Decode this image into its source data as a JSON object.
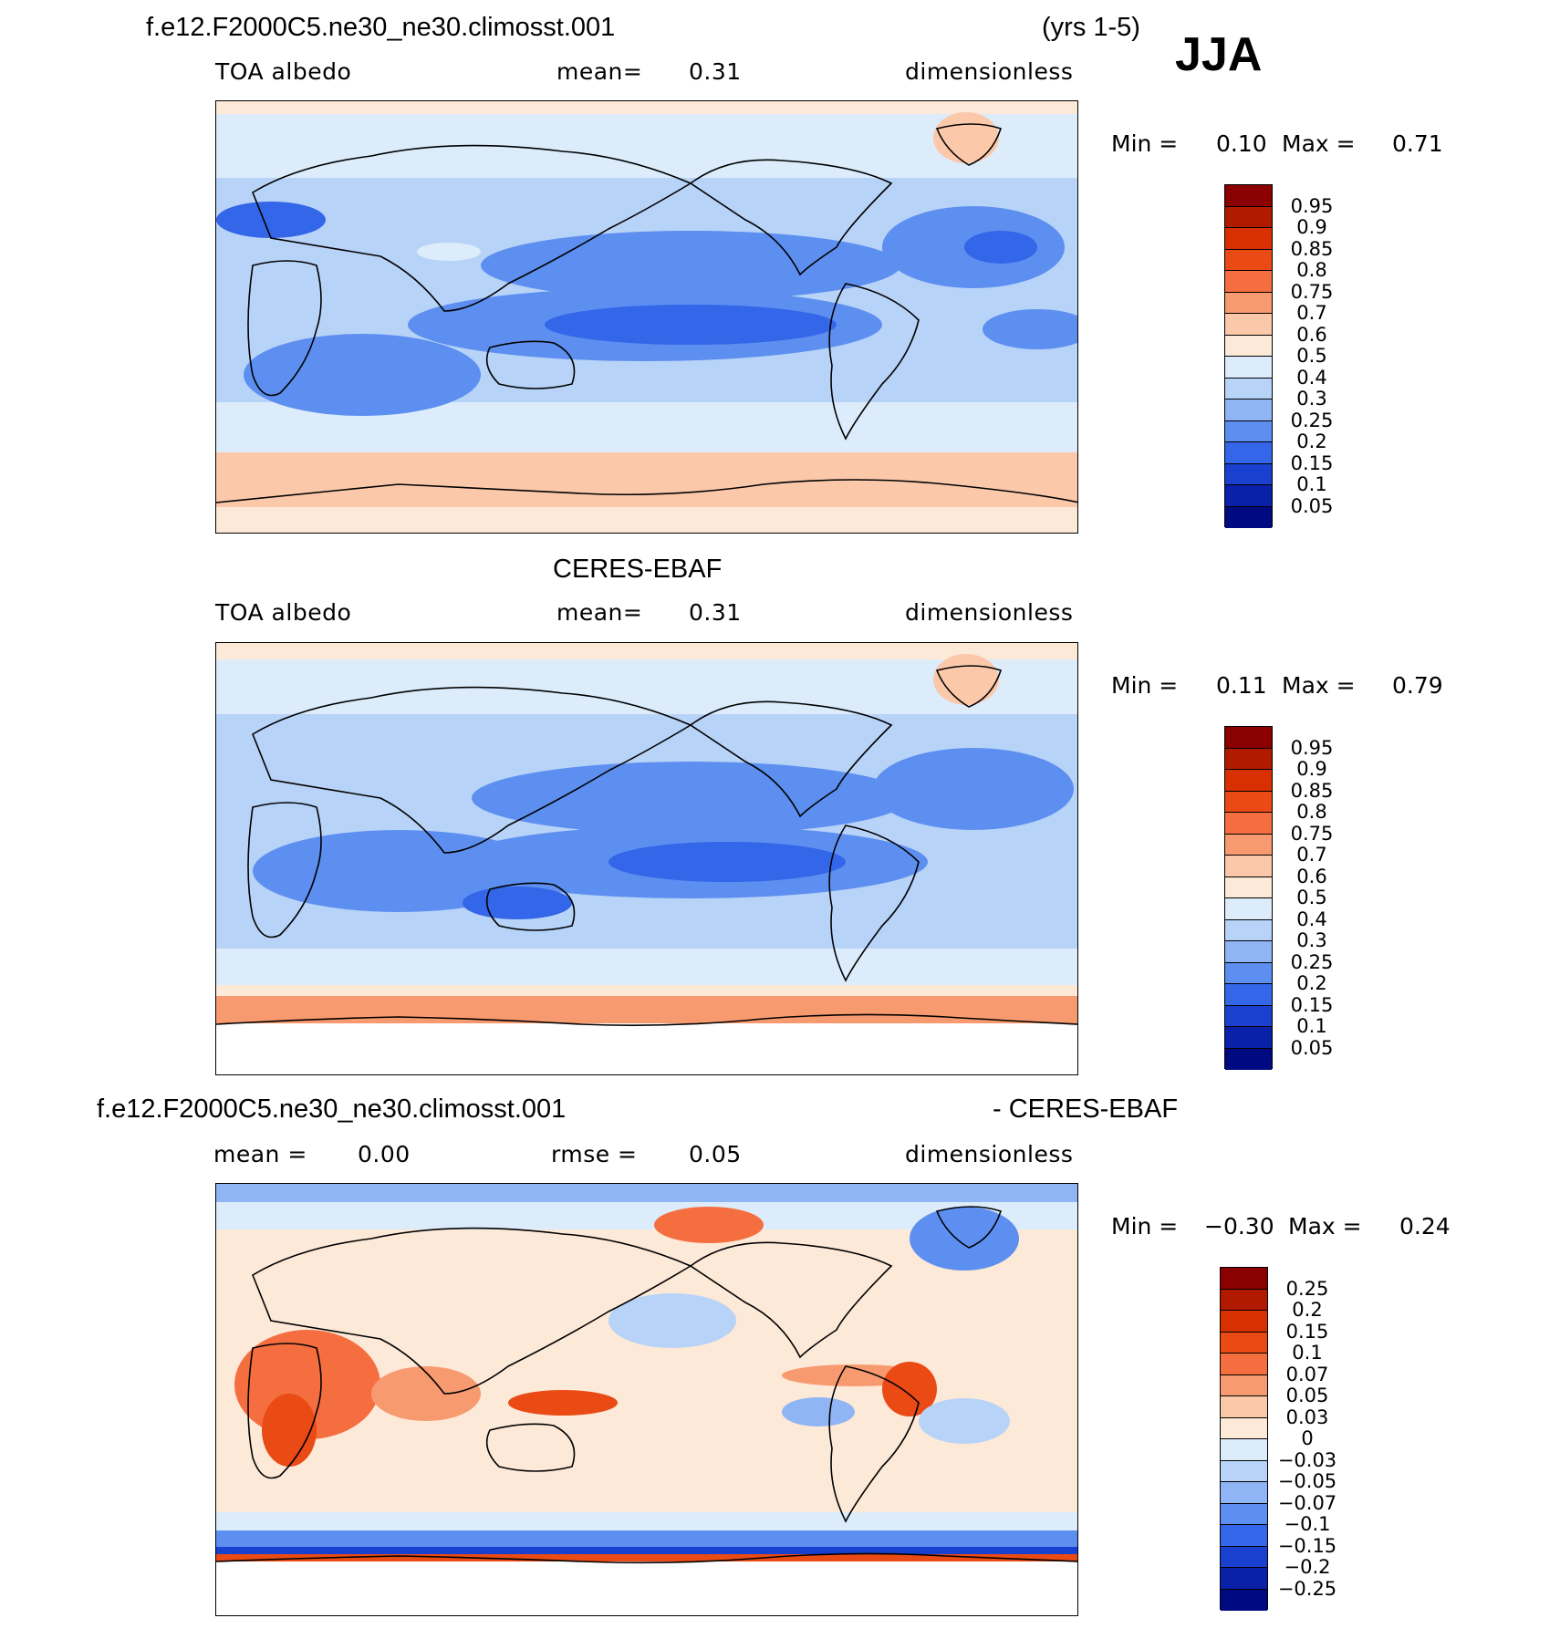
{
  "season": "JJA",
  "panels": [
    {
      "id": "model",
      "title_left": "f.e12.F2000C5.ne30_ne30.climosst.001",
      "title_right": "(yrs 1-5)",
      "variable": "TOA  albedo",
      "stat1": "mean=",
      "stat1_value": "0.31",
      "stat2": "",
      "stat2_value": "",
      "units": "dimensionless",
      "min_label": "Min =",
      "min_value": "0.10",
      "max_label": "Max =",
      "max_value": "0.71",
      "colorbar_labels": [
        "0.95",
        "0.9",
        "0.85",
        "0.8",
        "0.75",
        "0.7",
        "0.6",
        "0.5",
        "0.4",
        "0.3",
        "0.25",
        "0.2",
        "0.15",
        "0.1",
        "0.05"
      ]
    },
    {
      "id": "obs",
      "title_left": "CERES-EBAF",
      "title_right": "",
      "variable": "TOA  albedo",
      "stat1": "mean=",
      "stat1_value": "0.31",
      "stat2": "",
      "stat2_value": "",
      "units": "dimensionless",
      "min_label": "Min =",
      "min_value": "0.11",
      "max_label": "Max =",
      "max_value": "0.79",
      "colorbar_labels": [
        "0.95",
        "0.9",
        "0.85",
        "0.8",
        "0.75",
        "0.7",
        "0.6",
        "0.5",
        "0.4",
        "0.3",
        "0.25",
        "0.2",
        "0.15",
        "0.1",
        "0.05"
      ]
    },
    {
      "id": "diff",
      "title_left": "f.e12.F2000C5.ne30_ne30.climosst.001",
      "title_right": "- CERES-EBAF",
      "variable": "",
      "stat1": "mean =",
      "stat1_value": "0.00",
      "stat2": "rmse =",
      "stat2_value": "0.05",
      "units": "dimensionless",
      "min_label": "Min =",
      "min_value": "−0.30",
      "max_label": "Max =",
      "max_value": "0.24",
      "colorbar_labels": [
        "0.25",
        "0.2",
        "0.15",
        "0.1",
        "0.07",
        "0.05",
        "0.03",
        "0",
        "−0.03",
        "−0.05",
        "−0.07",
        "−0.1",
        "−0.15",
        "−0.2",
        "−0.25"
      ]
    }
  ],
  "colorbar_colors": [
    "#8b0000",
    "#b21a00",
    "#d83000",
    "#ea4a14",
    "#f46e40",
    "#f89a70",
    "#fbc8aa",
    "#fde9d8",
    "#dcecfb",
    "#b8d3f8",
    "#8fb5f4",
    "#5d8ff0",
    "#3366e8",
    "#1a40d0",
    "#0a20a8",
    "#000a80"
  ],
  "map_colors": {
    "ice_white": "#ffffff",
    "polar": "#fbc8aa",
    "pale": "#fde9d8",
    "light_blue": "#dcecfb",
    "mid_blue": "#b8d3f8",
    "blue": "#8fb5f4",
    "deep_blue": "#5d8ff0",
    "dark_blue": "#3366e8",
    "red": "#ea4a14",
    "orange": "#f46e40",
    "peach": "#f89a70"
  }
}
